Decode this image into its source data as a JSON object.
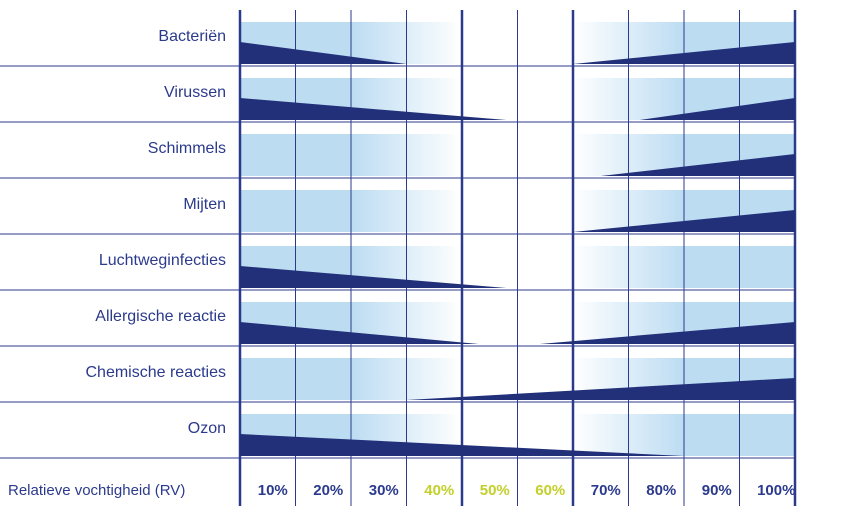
{
  "chart_data": {
    "type": "bar",
    "title": "",
    "xlabel": "Relatieve vochtigheid (RV)",
    "ylabel": "",
    "xlim": [
      0,
      100
    ],
    "x_ticks": [
      "10%",
      "20%",
      "30%",
      "40%",
      "50%",
      "60%",
      "70%",
      "80%",
      "90%",
      "100%"
    ],
    "highlight_ticks": [
      "40%",
      "50%",
      "60%"
    ],
    "optimal_zone": [
      40,
      60
    ],
    "grid": true,
    "categories": [
      "Bacteriën",
      "Virussen",
      "Schimmels",
      "Mijten",
      "Luchtweginfecties",
      "Allergische reactie",
      "Chemische reacties",
      "Ozon"
    ],
    "series": [
      {
        "low_end": 30,
        "high_start": 60
      },
      {
        "low_end": 48,
        "high_start": 72
      },
      {
        "low_end": null,
        "high_start": 65
      },
      {
        "low_end": null,
        "high_start": 60
      },
      {
        "low_end": 48,
        "high_start": null
      },
      {
        "low_end": 43,
        "high_start": 54
      },
      {
        "low_end": null,
        "high_start": 30
      },
      {
        "low_end": 80,
        "high_start": null
      }
    ]
  },
  "colors": {
    "text": "#2b3a8c",
    "wedge": "#22307a",
    "grid": "#2b3a8c",
    "shade": "#bcdcf2",
    "highlight_tick": "#c3cf2a",
    "background": "#ffffff"
  }
}
